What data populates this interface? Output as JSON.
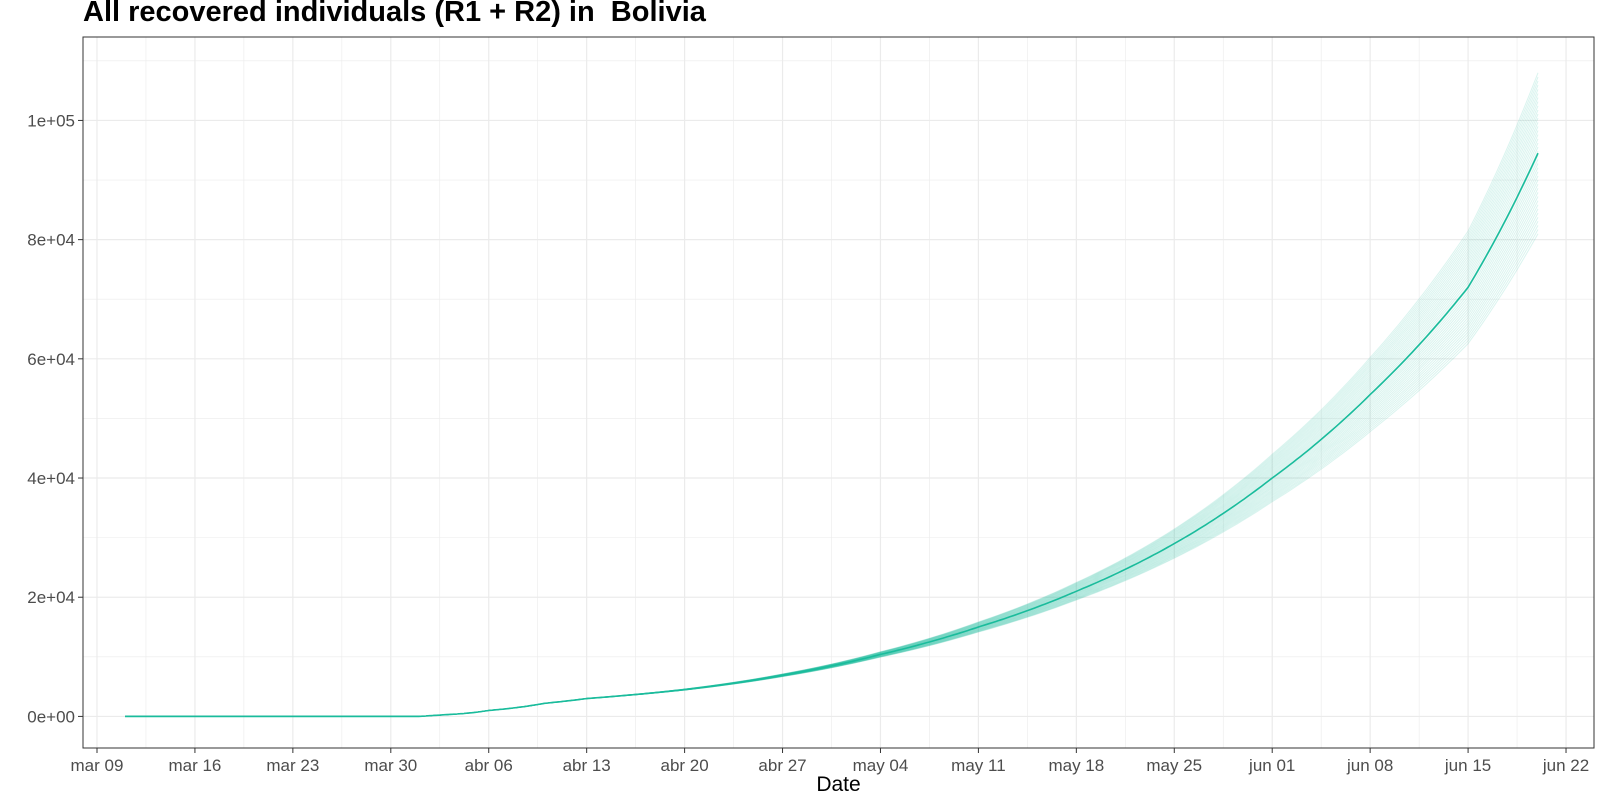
{
  "chart_data": {
    "type": "line",
    "title": "All recovered individuals (R1 + R2) in  Bolivia",
    "xlabel": "Date",
    "ylabel": "",
    "x_range": [
      "2020-03-08",
      "2020-06-24"
    ],
    "ylim": [
      -5300,
      114000
    ],
    "x_ticks": [
      {
        "date": "2020-03-09",
        "label": "mar 09"
      },
      {
        "date": "2020-03-16",
        "label": "mar 16"
      },
      {
        "date": "2020-03-23",
        "label": "mar 23"
      },
      {
        "date": "2020-03-30",
        "label": "mar 30"
      },
      {
        "date": "2020-04-06",
        "label": "abr 06"
      },
      {
        "date": "2020-04-13",
        "label": "abr 13"
      },
      {
        "date": "2020-04-20",
        "label": "abr 20"
      },
      {
        "date": "2020-04-27",
        "label": "abr 27"
      },
      {
        "date": "2020-05-04",
        "label": "may 04"
      },
      {
        "date": "2020-05-11",
        "label": "may 11"
      },
      {
        "date": "2020-05-18",
        "label": "may 18"
      },
      {
        "date": "2020-05-25",
        "label": "may 25"
      },
      {
        "date": "2020-06-01",
        "label": "jun 01"
      },
      {
        "date": "2020-06-08",
        "label": "jun 08"
      },
      {
        "date": "2020-06-15",
        "label": "jun 15"
      },
      {
        "date": "2020-06-22",
        "label": "jun 22"
      }
    ],
    "y_ticks": [
      {
        "value": 0,
        "label": "0e+00"
      },
      {
        "value": 20000,
        "label": "2e+04"
      },
      {
        "value": 40000,
        "label": "4e+04"
      },
      {
        "value": 60000,
        "label": "6e+04"
      },
      {
        "value": 80000,
        "label": "8e+04"
      },
      {
        "value": 100000,
        "label": "1e+05"
      }
    ],
    "grid": true,
    "colors": {
      "line": "#1abc9c",
      "grid": "#ebebeb",
      "panel_border": "#333333"
    },
    "series": [
      {
        "role": "median",
        "x": [
          "2020-03-11",
          "2020-03-18",
          "2020-03-25",
          "2020-04-01",
          "2020-04-03",
          "2020-04-06",
          "2020-04-10",
          "2020-04-13",
          "2020-04-20",
          "2020-04-27",
          "2020-05-04",
          "2020-05-11",
          "2020-05-18",
          "2020-05-25",
          "2020-06-01",
          "2020-06-08",
          "2020-06-15",
          "2020-06-20"
        ],
        "y": [
          0,
          0,
          0,
          0,
          300,
          1000,
          2200,
          3000,
          4500,
          6900,
          10400,
          15000,
          21000,
          29000,
          40000,
          54000,
          72000,
          94500
        ]
      }
    ],
    "ensemble": {
      "count": 40,
      "start": "2020-04-03",
      "end_value_range": [
        81000,
        108000
      ]
    }
  }
}
